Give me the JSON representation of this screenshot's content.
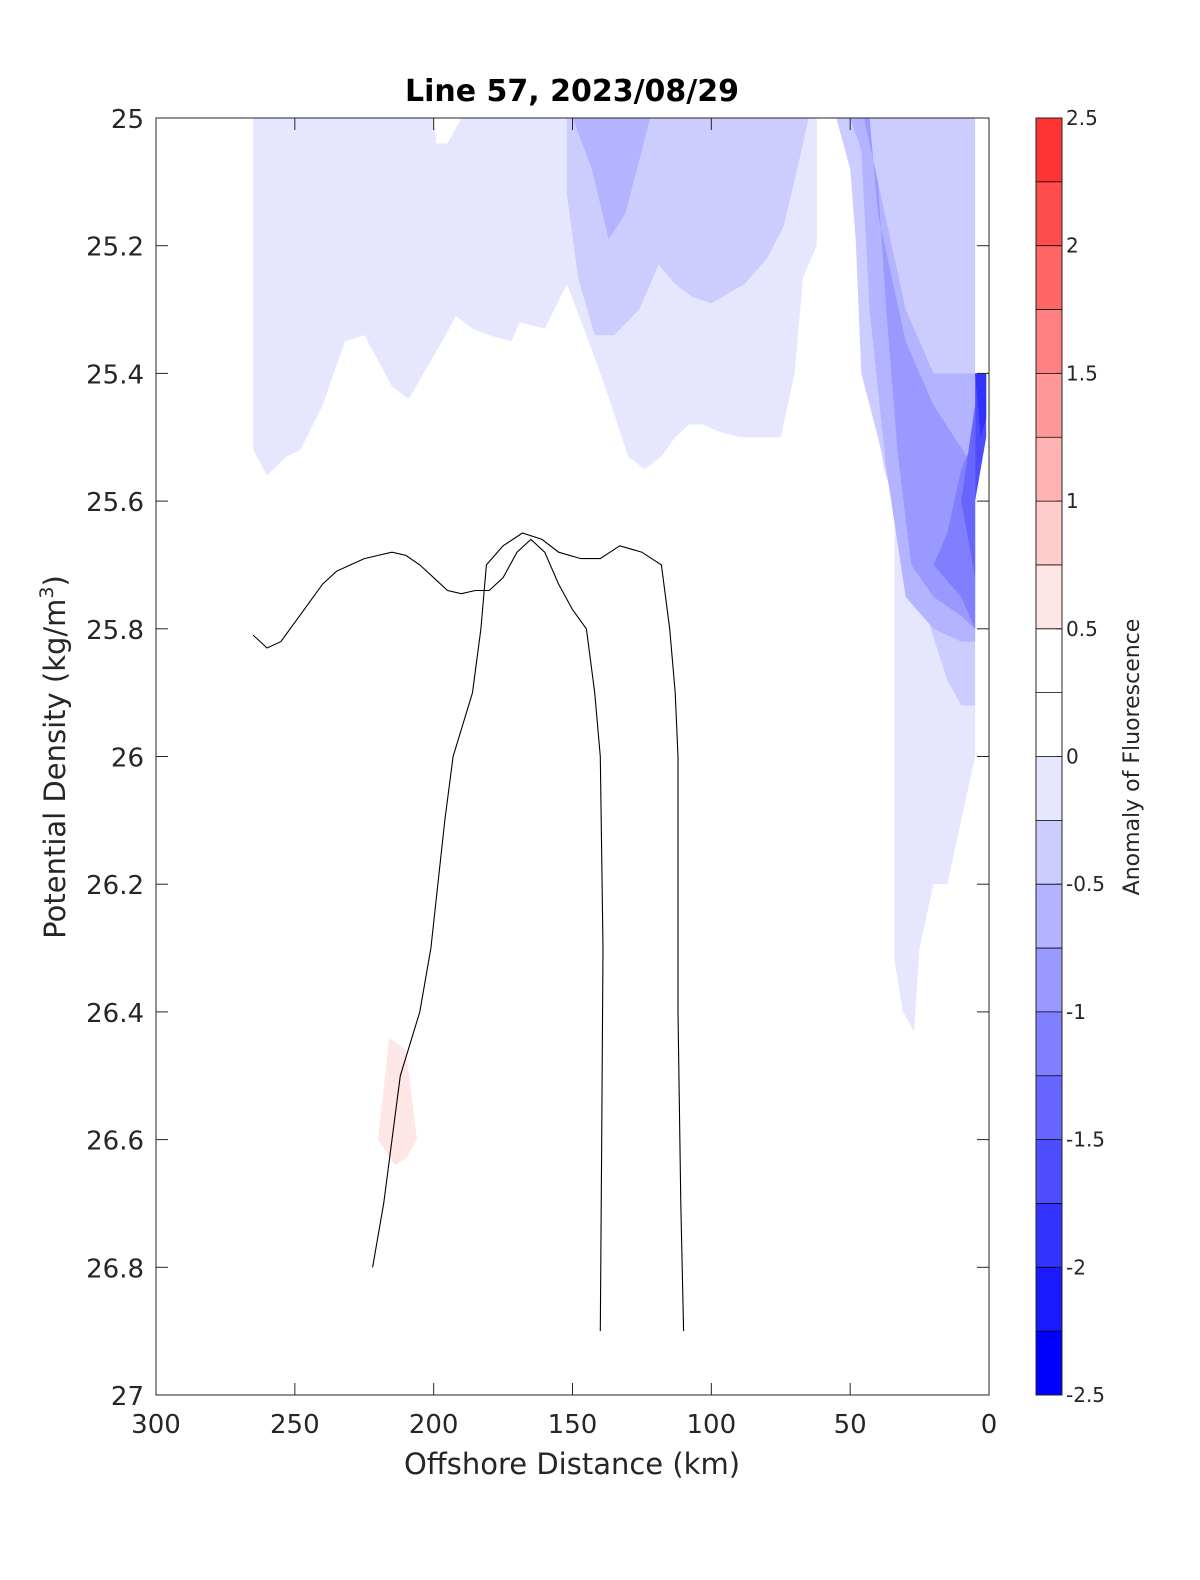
{
  "chart_data": {
    "type": "contour",
    "title": "Line 57, 2023/08/29",
    "xlabel": "Offshore Distance (km)",
    "ylabel_main": "Potential Density (kg/m",
    "ylabel_sup": "3",
    "ylabel_close": ")",
    "colorbar_label": "Anomaly of Fluorescence",
    "x_axis": {
      "range": [
        300,
        0
      ],
      "reversed": true,
      "ticks": [
        300,
        250,
        200,
        150,
        100,
        50,
        0
      ],
      "tick_labels": [
        "300",
        "250",
        "200",
        "150",
        "100",
        "50",
        "0"
      ]
    },
    "y_axis": {
      "range": [
        25,
        27
      ],
      "reversed": true,
      "ticks": [
        25,
        25.2,
        25.4,
        25.6,
        25.8,
        26,
        26.2,
        26.4,
        26.6,
        26.8,
        27
      ],
      "tick_labels": [
        "25",
        "25.2",
        "25.4",
        "25.6",
        "25.8",
        "26",
        "26.2",
        "26.4",
        "26.6",
        "26.8",
        "27"
      ]
    },
    "colorbar": {
      "range": [
        -2.5,
        2.5
      ],
      "levels": [
        -2.5,
        -2.25,
        -2,
        -1.75,
        -1.5,
        -1.25,
        -1,
        -0.75,
        -0.5,
        -0.25,
        0,
        0.25,
        0.5,
        0.75,
        1,
        1.25,
        1.5,
        1.75,
        2,
        2.25,
        2.5
      ],
      "colors": [
        "#0000ff",
        "#1a1aff",
        "#3333ff",
        "#4d4dff",
        "#6666ff",
        "#8080ff",
        "#9999ff",
        "#b3b3ff",
        "#ccccff",
        "#e6e6ff",
        "#ffffff",
        "#ffffff",
        "#ffe6e6",
        "#ffcccc",
        "#ffb3b3",
        "#ff9999",
        "#ff8080",
        "#ff6666",
        "#ff4d4d",
        "#ff3333",
        "#ff1a1a"
      ],
      "ticks": [
        -2.5,
        -2,
        -1.5,
        -1,
        -0.5,
        0,
        0.5,
        1,
        1.5,
        2,
        2.5
      ],
      "tick_labels": [
        "-2.5",
        "-2",
        "-1.5",
        "-1",
        "-0.5",
        "0",
        "0.5",
        "1",
        "1.5",
        "2",
        "2.5"
      ]
    },
    "filled_regions": [
      {
        "name": "anomaly-band-minus-0.5",
        "color": "#e6e6ff",
        "points": [
          [
            265,
            25
          ],
          [
            200,
            25
          ],
          [
            199,
            25.04
          ],
          [
            195,
            25.04
          ],
          [
            190,
            25
          ],
          [
            60,
            25
          ],
          [
            46,
            25
          ],
          [
            45,
            25.04
          ],
          [
            43,
            25.35
          ],
          [
            38,
            25.55
          ],
          [
            34,
            25.6
          ],
          [
            34,
            26.22
          ],
          [
            34,
            26.32
          ],
          [
            31,
            26.4
          ],
          [
            27,
            26.43
          ],
          [
            25,
            26.3
          ],
          [
            20,
            26.2
          ],
          [
            15,
            26.2
          ],
          [
            5,
            26
          ],
          [
            5,
            25.95
          ],
          [
            5,
            25.8
          ],
          [
            7,
            25.82
          ],
          [
            15,
            25.7
          ],
          [
            25,
            25.7
          ],
          [
            30,
            25.6
          ],
          [
            30,
            25.35
          ],
          [
            45,
            25.35
          ],
          [
            50,
            25
          ],
          [
            62,
            25
          ],
          [
            62,
            25.2
          ],
          [
            67,
            25.25
          ],
          [
            70,
            25.4
          ],
          [
            75,
            25.5
          ],
          [
            90,
            25.5
          ],
          [
            98,
            25.49
          ],
          [
            103,
            25.48
          ],
          [
            108,
            25.48
          ],
          [
            113,
            25.5
          ],
          [
            118,
            25.53
          ],
          [
            124,
            25.55
          ],
          [
            130,
            25.53
          ],
          [
            136,
            25.45
          ],
          [
            140,
            25.4
          ],
          [
            145,
            25.34
          ],
          [
            152,
            25.26
          ],
          [
            160,
            25.33
          ],
          [
            169,
            25.32
          ],
          [
            172,
            25.35
          ],
          [
            180,
            25.34
          ],
          [
            186,
            25.33
          ],
          [
            192,
            25.31
          ],
          [
            197,
            25.35
          ],
          [
            205,
            25.41
          ],
          [
            209,
            25.44
          ],
          [
            215,
            25.42
          ],
          [
            225,
            25.34
          ],
          [
            232,
            25.35
          ],
          [
            240,
            25.45
          ],
          [
            248,
            25.52
          ],
          [
            253,
            25.53
          ],
          [
            260,
            25.56
          ],
          [
            265,
            25.52
          ]
        ]
      },
      {
        "name": "anomaly-band-minus-0.75",
        "color": "#ccccff",
        "points": [
          [
            152,
            25
          ],
          [
            152,
            25.12
          ],
          [
            148,
            25.25
          ],
          [
            142,
            25.34
          ],
          [
            135,
            25.34
          ],
          [
            126,
            25.3
          ],
          [
            119,
            25.23
          ],
          [
            113,
            25.26
          ],
          [
            107,
            25.28
          ],
          [
            100,
            25.29
          ],
          [
            92,
            25.27
          ],
          [
            88,
            25.26
          ],
          [
            80,
            25.22
          ],
          [
            74,
            25.17
          ],
          [
            68,
            25.06
          ],
          [
            65,
            25
          ],
          [
            55,
            25
          ],
          [
            50,
            25.08
          ],
          [
            48,
            25.19
          ],
          [
            46,
            25.4
          ],
          [
            40,
            25.5
          ],
          [
            32,
            25.65
          ],
          [
            27,
            25.7
          ],
          [
            21,
            25.8
          ],
          [
            15,
            25.88
          ],
          [
            10,
            25.92
          ],
          [
            5,
            25.92
          ],
          [
            5,
            25
          ],
          [
            55,
            25
          ]
        ]
      },
      {
        "name": "anomaly-band-minus-1",
        "color": "#b3b3ff",
        "points": [
          [
            150,
            25
          ],
          [
            143,
            25.08
          ],
          [
            137,
            25.19
          ],
          [
            131,
            25.15
          ],
          [
            125,
            25.05
          ],
          [
            122,
            25
          ],
          [
            150,
            25
          ]
        ]
      },
      {
        "name": "anomaly-band-minus-1-east",
        "color": "#b3b3ff",
        "points": [
          [
            50,
            25
          ],
          [
            46,
            25.05
          ],
          [
            43,
            25.3
          ],
          [
            37,
            25.55
          ],
          [
            30,
            25.75
          ],
          [
            20,
            25.8
          ],
          [
            10,
            25.82
          ],
          [
            5,
            25.82
          ],
          [
            5,
            25.4
          ],
          [
            20,
            25.4
          ],
          [
            30,
            25.3
          ],
          [
            40,
            25.1
          ],
          [
            45,
            25
          ]
        ]
      },
      {
        "name": "anomaly-band-minus-1.25",
        "color": "#9999ff",
        "points": [
          [
            45,
            25
          ],
          [
            40,
            25.1
          ],
          [
            37,
            25.3
          ],
          [
            33,
            25.52
          ],
          [
            28,
            25.7
          ],
          [
            20,
            25.75
          ],
          [
            10,
            25.78
          ],
          [
            5,
            25.8
          ],
          [
            5,
            25.55
          ],
          [
            20,
            25.45
          ],
          [
            30,
            25.35
          ],
          [
            40,
            25.15
          ],
          [
            43,
            25
          ]
        ]
      },
      {
        "name": "anomaly-band-minus-1.5",
        "color": "#8080ff",
        "points": [
          [
            5,
            25.5
          ],
          [
            10,
            25.55
          ],
          [
            15,
            25.65
          ],
          [
            20,
            25.7
          ],
          [
            10,
            25.75
          ],
          [
            5,
            25.8
          ]
        ]
      },
      {
        "name": "anomaly-band-minus-1.75",
        "color": "#6666ff",
        "points": [
          [
            5,
            25.45
          ],
          [
            10,
            25.6
          ],
          [
            5,
            25.72
          ]
        ]
      },
      {
        "name": "anomaly-band-minus-2",
        "color": "#4d4dff",
        "points": [
          [
            5,
            25.4
          ],
          [
            1,
            25.4
          ],
          [
            1,
            25.5
          ],
          [
            5,
            25.6
          ]
        ]
      },
      {
        "name": "anomaly-band-minus-2.25",
        "color": "#3333ff",
        "points": [
          [
            5,
            25.4
          ],
          [
            1,
            25.4
          ],
          [
            1,
            25.47
          ],
          [
            3,
            25.5
          ]
        ]
      },
      {
        "name": "anomaly-band-plus-0.25",
        "color": "#ffe6e6",
        "points": [
          [
            216,
            26.44
          ],
          [
            210,
            26.46
          ],
          [
            206,
            26.6
          ],
          [
            210,
            26.63
          ],
          [
            214,
            26.64
          ],
          [
            220,
            26.6
          ]
        ]
      }
    ],
    "contour_lines": [
      {
        "name": "isoline-left",
        "points": [
          [
            265,
            25.81
          ],
          [
            260,
            25.83
          ],
          [
            255,
            25.82
          ],
          [
            250,
            25.79
          ],
          [
            245,
            25.76
          ],
          [
            240,
            25.73
          ],
          [
            235,
            25.71
          ],
          [
            230,
            25.7
          ],
          [
            225,
            25.69
          ],
          [
            220,
            25.685
          ],
          [
            215,
            25.68
          ],
          [
            210,
            25.685
          ],
          [
            205,
            25.7
          ],
          [
            200,
            25.72
          ],
          [
            195,
            25.74
          ],
          [
            190,
            25.745
          ],
          [
            185,
            25.74
          ],
          [
            180,
            25.74
          ],
          [
            175,
            25.72
          ],
          [
            170,
            25.68
          ],
          [
            165,
            25.66
          ],
          [
            160,
            25.68
          ],
          [
            155,
            25.73
          ],
          [
            150,
            25.77
          ],
          [
            145,
            25.8
          ],
          [
            142,
            25.9
          ],
          [
            140,
            26
          ],
          [
            139,
            26.3
          ],
          [
            139.5,
            26.6
          ],
          [
            140,
            26.9
          ]
        ]
      },
      {
        "name": "isoline-right",
        "points": [
          [
            110,
            26.9
          ],
          [
            111,
            26.7
          ],
          [
            112,
            26.4
          ],
          [
            112,
            26.2
          ],
          [
            112,
            26
          ],
          [
            113,
            25.9
          ],
          [
            115,
            25.8
          ],
          [
            118,
            25.7
          ],
          [
            125,
            25.68
          ],
          [
            133,
            25.67
          ],
          [
            140,
            25.69
          ],
          [
            147,
            25.69
          ],
          [
            155,
            25.68
          ],
          [
            161,
            25.66
          ],
          [
            168,
            25.65
          ],
          [
            175,
            25.67
          ],
          [
            181,
            25.7
          ],
          [
            183,
            25.8
          ],
          [
            186,
            25.9
          ],
          [
            193,
            26
          ],
          [
            196,
            26.1
          ],
          [
            201,
            26.3
          ],
          [
            205,
            26.4
          ],
          [
            212,
            26.5
          ],
          [
            215,
            26.6
          ],
          [
            218,
            26.7
          ],
          [
            222,
            26.8
          ]
        ]
      }
    ],
    "grid": false,
    "legend": "colorbar-right"
  }
}
